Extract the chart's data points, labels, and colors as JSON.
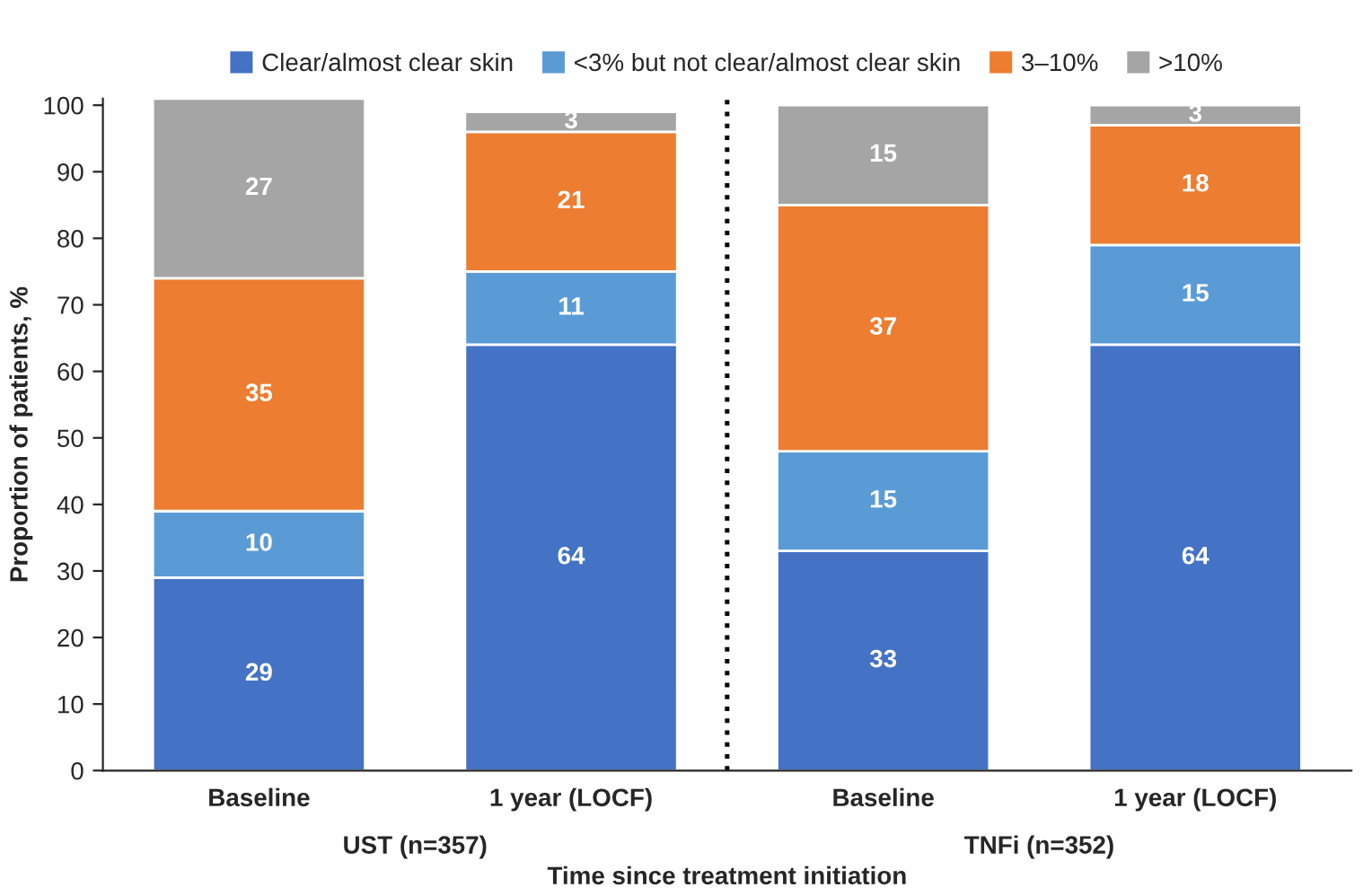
{
  "chart_data": {
    "type": "bar",
    "stacked": true,
    "xlabel": "Time since treatment initiation",
    "ylabel": "Proportion of patients, %",
    "categories": [
      "Baseline",
      "1 year (LOCF)",
      "Baseline",
      "1 year (LOCF)"
    ],
    "series": [
      {
        "name": "Clear/almost clear skin",
        "color": "#4472c4",
        "values": [
          29,
          64,
          33,
          64
        ]
      },
      {
        "name": "<3% but not clear/almost clear skin",
        "color": "#5b9bd5",
        "values": [
          10,
          11,
          15,
          15
        ]
      },
      {
        "name": "3–10%",
        "color": "#ed7d31",
        "values": [
          35,
          21,
          37,
          18
        ]
      },
      {
        "name": ">10%",
        "color": "#a5a5a5",
        "values": [
          27,
          3,
          15,
          3
        ]
      }
    ],
    "ylim": [
      0,
      101
    ],
    "yticks": [
      0,
      10,
      20,
      30,
      40,
      50,
      60,
      70,
      80,
      90,
      100
    ],
    "data_labels": true,
    "legend": "top",
    "grid": false,
    "annotations": [
      "UST (n=357)",
      "TNFi (n=352)"
    ]
  }
}
